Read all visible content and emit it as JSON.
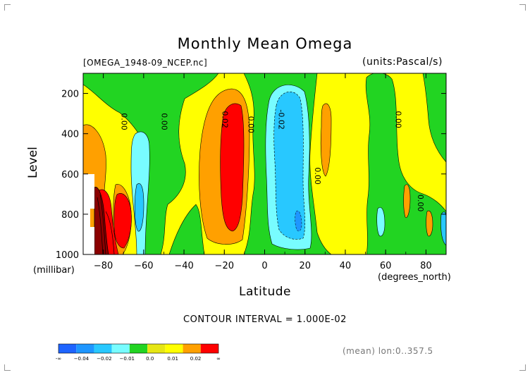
{
  "chart_data": {
    "type": "heatmap",
    "title": "Monthly Mean Omega",
    "file_label": "[OMEGA_1948-09_NCEP.nc]",
    "units_label": "(units:Pascal/s)",
    "ylabel": "Level",
    "yunit": "(millibar)",
    "xlabel": "Latitude",
    "xunit": "(degrees_north)",
    "xlim": [
      -90,
      90
    ],
    "ylim": [
      1000,
      100
    ],
    "x_ticks": [
      -80,
      -60,
      -40,
      -20,
      0,
      20,
      40,
      60,
      80
    ],
    "x_tick_labels": [
      "−80",
      "−60",
      "−40",
      "−20",
      "0",
      "20",
      "40",
      "60",
      "80"
    ],
    "y_ticks": [
      200,
      400,
      600,
      800,
      1000
    ],
    "y_tick_labels": [
      "200",
      "400",
      "600",
      "800",
      "1000"
    ],
    "contour_labels": [
      {
        "text": "0.00",
        "lat": -71,
        "level": 340
      },
      {
        "text": "0.00",
        "lat": -51,
        "level": 340
      },
      {
        "text": "0.02",
        "lat": -21,
        "level": 330
      },
      {
        "text": "0.00",
        "lat": -8,
        "level": 355
      },
      {
        "text": "-0.02",
        "lat": 7,
        "level": 330
      },
      {
        "text": "0.00",
        "lat": 25,
        "level": 610
      },
      {
        "text": "0.00",
        "lat": 65,
        "level": 330
      },
      {
        "text": "0.00",
        "lat": 76,
        "level": 745
      }
    ],
    "contour_interval_text": "CONTOUR INTERVAL = 1.000E-02",
    "mean_text": "(mean) lon:0..357.5",
    "colorbar": {
      "colors": [
        "#1e64ff",
        "#1e96ff",
        "#28c8ff",
        "#78fcff",
        "#22d422",
        "#e6e614",
        "#ffff00",
        "#ffa000",
        "#ff0000"
      ],
      "labels": [
        "-∞",
        "−0.04",
        "−0.02",
        "−0.01",
        "0.0",
        "0.01",
        "0.02",
        "∞"
      ]
    }
  }
}
